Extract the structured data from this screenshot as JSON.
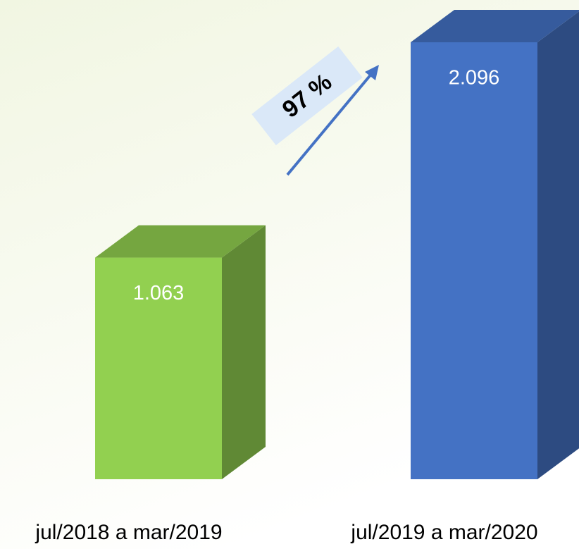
{
  "chart_data": {
    "type": "bar3d",
    "categories": [
      "jul/2018 a mar/2019",
      "jul/2019 a mar/2020"
    ],
    "values": [
      1063,
      2096
    ],
    "value_labels": [
      "1.063",
      "2.096"
    ],
    "colors": [
      "#92d050",
      "#4472c4"
    ],
    "annotation": "97 %"
  }
}
